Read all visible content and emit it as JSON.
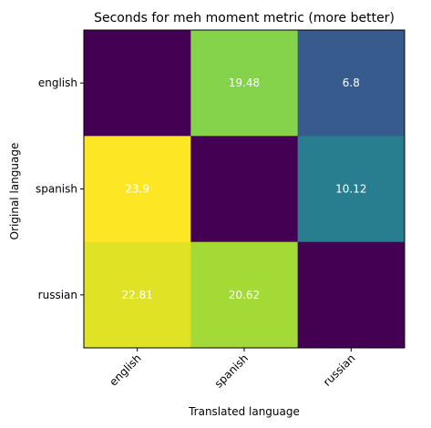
{
  "chart_data": {
    "type": "heatmap",
    "title": "Seconds for meh moment metric (more better)",
    "xlabel": "Translated language",
    "ylabel": "Original language",
    "x_categories": [
      "english",
      "spanish",
      "russian"
    ],
    "y_categories": [
      "english",
      "spanish",
      "russian"
    ],
    "values": [
      [
        0,
        19.48,
        6.8
      ],
      [
        23.9,
        0,
        10.12
      ],
      [
        22.81,
        20.62,
        0
      ]
    ],
    "cell_labels": [
      [
        "",
        "19.48",
        "6.8"
      ],
      [
        "23.9",
        "",
        "10.12"
      ],
      [
        "22.81",
        "20.62",
        ""
      ]
    ],
    "colormap": "viridis",
    "color_range": [
      0,
      23.9
    ],
    "grid": false,
    "cell_label_color": "#ffffff",
    "x_tick_rotation_deg": 45
  }
}
